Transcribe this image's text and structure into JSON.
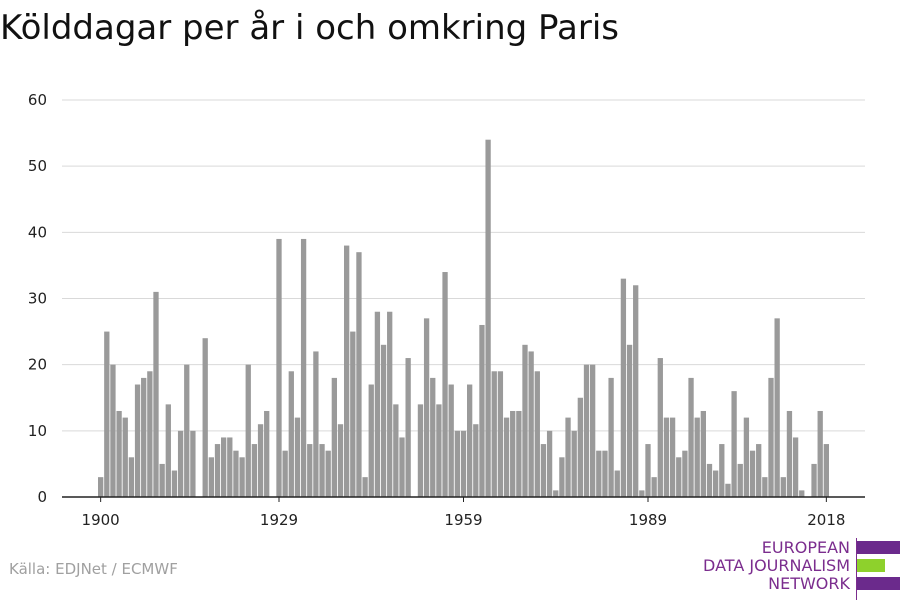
{
  "page": {
    "title": "Kölddagar per år i och omkring Paris",
    "source": "Källa: EDJNet / ECMWF"
  },
  "logo": {
    "line1": "EUROPEAN",
    "line2": "DATA JOURNALISM",
    "line3": "NETWORK",
    "colors": {
      "purple": "#6b2a8c",
      "green": "#8ed12c"
    }
  },
  "colors": {
    "bar": "#9a9a9a",
    "grid": "#d9d9d9",
    "axis": "#222222"
  },
  "chart_data": {
    "type": "bar",
    "title": "Kölddagar per år i och omkring Paris",
    "xlabel": "",
    "ylabel": "",
    "ylim": [
      0,
      60
    ],
    "yticks": [
      0,
      10,
      20,
      30,
      40,
      50,
      60
    ],
    "xticks": [
      "1900",
      "1929",
      "1959",
      "1989",
      "2018"
    ],
    "grid": true,
    "x_start": 1900,
    "values": [
      3,
      25,
      20,
      13,
      12,
      6,
      17,
      18,
      19,
      31,
      5,
      14,
      4,
      10,
      20,
      10,
      0,
      24,
      6,
      8,
      9,
      9,
      7,
      6,
      20,
      8,
      11,
      13,
      0,
      39,
      7,
      19,
      12,
      39,
      8,
      22,
      8,
      7,
      18,
      11,
      38,
      25,
      37,
      3,
      17,
      28,
      23,
      28,
      14,
      9,
      21,
      0,
      14,
      27,
      18,
      14,
      34,
      17,
      10,
      10,
      17,
      11,
      26,
      54,
      19,
      19,
      12,
      13,
      13,
      23,
      22,
      19,
      8,
      10,
      1,
      6,
      12,
      10,
      15,
      20,
      20,
      7,
      7,
      18,
      4,
      33,
      23,
      32,
      1,
      8,
      3,
      21,
      12,
      12,
      6,
      7,
      18,
      12,
      13,
      5,
      4,
      8,
      2,
      16,
      5,
      12,
      7,
      8,
      3,
      18,
      27,
      3,
      13,
      9,
      1,
      0,
      5,
      13,
      8
    ]
  }
}
